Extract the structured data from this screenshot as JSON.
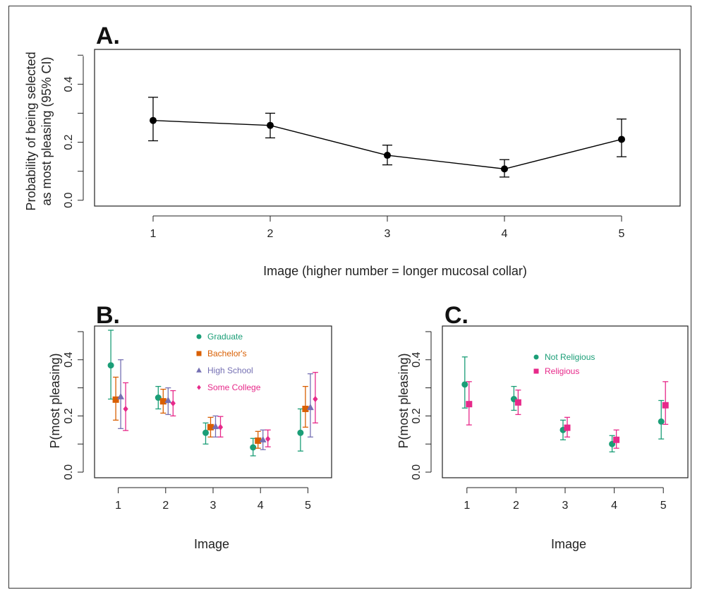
{
  "figure": {
    "panels": [
      "A.",
      "B.",
      "C."
    ]
  },
  "chart_data": [
    {
      "panel": "A.",
      "type": "line",
      "xlabel": "Image (higher number = longer mucosal collar)",
      "ylabel": [
        "Probability of being selected",
        "as most pleasing (95% CI)"
      ],
      "x": [
        1,
        2,
        3,
        4,
        5
      ],
      "x_ticks": [
        "1",
        "2",
        "3",
        "4",
        "5"
      ],
      "y_ticks": [
        "0.0",
        "0.2",
        "0.4"
      ],
      "xlim": [
        0.5,
        5.5
      ],
      "ylim": [
        -0.02,
        0.52
      ],
      "series": [
        {
          "values": [
            0.275,
            0.258,
            0.155,
            0.108,
            0.21
          ],
          "ci_low": [
            0.205,
            0.215,
            0.122,
            0.08,
            0.15
          ],
          "ci_high": [
            0.355,
            0.3,
            0.19,
            0.14,
            0.28
          ],
          "color": "#000000",
          "marker": "circle"
        }
      ],
      "grid": false
    },
    {
      "panel": "B.",
      "type": "scatter",
      "xlabel": "Image",
      "ylabel": "P(most pleasing)",
      "x": [
        1,
        2,
        3,
        4,
        5
      ],
      "x_ticks": [
        "1",
        "2",
        "3",
        "4",
        "5"
      ],
      "y_ticks": [
        "0.0",
        "0.2",
        "0.4"
      ],
      "xlim": [
        0.5,
        5.5
      ],
      "ylim": [
        -0.02,
        0.52
      ],
      "legend_position": "top-center",
      "series": [
        {
          "name": "Graduate",
          "color": "#1b9e77",
          "marker": "circle",
          "values": [
            0.38,
            0.265,
            0.14,
            0.088,
            0.14
          ],
          "ci_low": [
            0.26,
            0.225,
            0.1,
            0.058,
            0.075
          ],
          "ci_high": [
            0.505,
            0.305,
            0.175,
            0.12,
            0.225
          ]
        },
        {
          "name": "Bachelor's",
          "color": "#d95f02",
          "marker": "square",
          "values": [
            0.258,
            0.252,
            0.16,
            0.112,
            0.225
          ],
          "ci_low": [
            0.185,
            0.21,
            0.125,
            0.085,
            0.16
          ],
          "ci_high": [
            0.338,
            0.295,
            0.195,
            0.145,
            0.305
          ]
        },
        {
          "name": "High School",
          "color": "#7570b3",
          "marker": "triangle",
          "values": [
            0.268,
            0.255,
            0.162,
            0.115,
            0.23
          ],
          "ci_low": [
            0.155,
            0.205,
            0.125,
            0.08,
            0.125
          ],
          "ci_high": [
            0.4,
            0.3,
            0.2,
            0.15,
            0.35
          ]
        },
        {
          "name": "Some College",
          "color": "#e7298a",
          "marker": "diamond",
          "values": [
            0.225,
            0.245,
            0.16,
            0.118,
            0.26
          ],
          "ci_low": [
            0.148,
            0.2,
            0.125,
            0.09,
            0.175
          ],
          "ci_high": [
            0.318,
            0.29,
            0.198,
            0.15,
            0.355
          ]
        }
      ],
      "grid": false
    },
    {
      "panel": "C.",
      "type": "scatter",
      "xlabel": "Image",
      "ylabel": "P(most pleasing)",
      "x": [
        1,
        2,
        3,
        4,
        5
      ],
      "x_ticks": [
        "1",
        "2",
        "3",
        "4",
        "5"
      ],
      "y_ticks": [
        "0.0",
        "0.2",
        "0.4"
      ],
      "xlim": [
        0.5,
        5.5
      ],
      "ylim": [
        -0.02,
        0.52
      ],
      "legend_position": "top-center",
      "series": [
        {
          "name": "Not Religious",
          "color": "#1b9e77",
          "marker": "circle",
          "values": [
            0.312,
            0.26,
            0.15,
            0.1,
            0.18
          ],
          "ci_low": [
            0.228,
            0.22,
            0.115,
            0.072,
            0.118
          ],
          "ci_high": [
            0.41,
            0.305,
            0.185,
            0.13,
            0.255
          ]
        },
        {
          "name": "Religious",
          "color": "#e7298a",
          "marker": "square",
          "values": [
            0.242,
            0.248,
            0.158,
            0.115,
            0.238
          ],
          "ci_low": [
            0.168,
            0.205,
            0.125,
            0.085,
            0.17
          ],
          "ci_high": [
            0.322,
            0.292,
            0.195,
            0.15,
            0.322
          ]
        }
      ],
      "grid": false
    }
  ]
}
